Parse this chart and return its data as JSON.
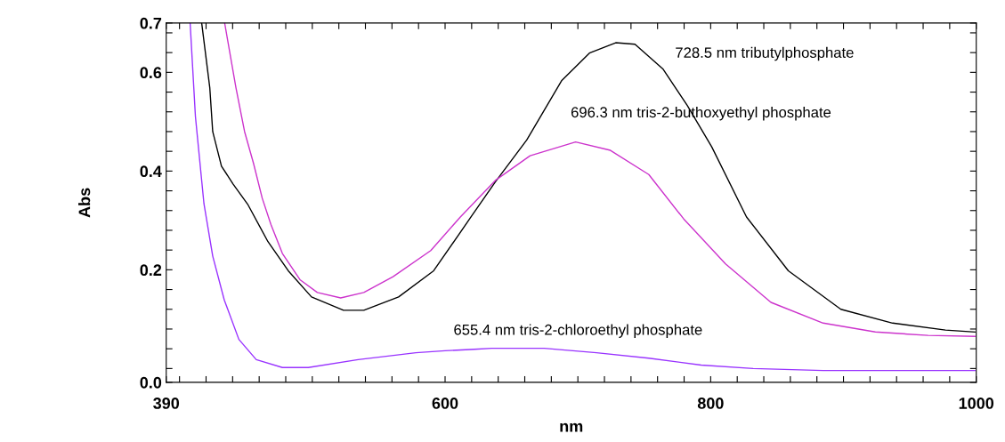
{
  "chart_data": {
    "type": "line",
    "xlabel": "nm",
    "ylabel": "Abs",
    "xlim": [
      390,
      1000
    ],
    "ylim": [
      -0.028,
      0.7
    ],
    "xticks": [
      390,
      {
        "value": 400,
        "label": null
      },
      {
        "value": 420,
        "label": null
      },
      {
        "value": 440,
        "label": null
      },
      {
        "value": 460,
        "label": null
      },
      {
        "value": 480,
        "label": null
      },
      {
        "value": 500,
        "label": null
      },
      {
        "value": 520,
        "label": null
      },
      {
        "value": 540,
        "label": null
      },
      {
        "value": 560,
        "label": null
      },
      {
        "value": 580,
        "label": null
      },
      600,
      {
        "value": 620,
        "label": null
      },
      {
        "value": 640,
        "label": null
      },
      {
        "value": 660,
        "label": null
      },
      {
        "value": 680,
        "label": null
      },
      {
        "value": 700,
        "label": null
      },
      {
        "value": 720,
        "label": null
      },
      {
        "value": 740,
        "label": null
      },
      {
        "value": 760,
        "label": null
      },
      {
        "value": 780,
        "label": null
      },
      800,
      {
        "value": 820,
        "label": null
      },
      {
        "value": 840,
        "label": null
      },
      {
        "value": 860,
        "label": null
      },
      {
        "value": 880,
        "label": null
      },
      {
        "value": 900,
        "label": null
      },
      {
        "value": 920,
        "label": null
      },
      {
        "value": 940,
        "label": null
      },
      {
        "value": 960,
        "label": null
      },
      {
        "value": 980,
        "label": null
      },
      1000
    ],
    "yticks": [
      {
        "value": -0.028,
        "label": "0.0"
      },
      {
        "value": 0,
        "label": null
      },
      {
        "value": 0.04,
        "label": null
      },
      {
        "value": 0.08,
        "label": null
      },
      {
        "value": 0.12,
        "label": null
      },
      {
        "value": 0.16,
        "label": null
      },
      0.2,
      {
        "value": 0.24,
        "label": null
      },
      {
        "value": 0.28,
        "label": null
      },
      {
        "value": 0.32,
        "label": null
      },
      {
        "value": 0.36,
        "label": null
      },
      0.4,
      {
        "value": 0.44,
        "label": null
      },
      {
        "value": 0.48,
        "label": null
      },
      {
        "value": 0.52,
        "label": null
      },
      {
        "value": 0.56,
        "label": null
      },
      0.6,
      {
        "value": 0.64,
        "label": null
      },
      {
        "value": 0.68,
        "label": null
      },
      0.7
    ],
    "grid": false,
    "marker": "none",
    "line_style": "solid",
    "series": [
      {
        "color": "#000000",
        "x": [
          416.7,
          422.8,
          425,
          431.6,
          440.3,
          451.3,
          466.6,
          481.9,
          499.4,
          523.5,
          538.8,
          565,
          591.4,
          619.5,
          637.8,
          661.5,
          687.7,
          708.7,
          728.5,
          743,
          764,
          782.4,
          800.8,
          827,
          858.5,
          898,
          937,
          976.8,
          999
        ],
        "values": [
          0.7,
          0.569,
          0.48,
          0.41,
          0.374,
          0.333,
          0.257,
          0.198,
          0.145,
          0.118,
          0.118,
          0.145,
          0.198,
          0.307,
          0.378,
          0.463,
          0.583,
          0.639,
          0.66,
          0.657,
          0.607,
          0.533,
          0.449,
          0.307,
          0.198,
          0.12,
          0.092,
          0.078,
          0.074
        ]
      },
      {
        "color": "#cc33cc",
        "x": [
          434,
          442.5,
          449,
          455.7,
          462.3,
          468.8,
          477.5,
          490.7,
          503.8,
          521.4,
          538.8,
          560.8,
          589.2,
          611.5,
          637.8,
          664,
          698.3,
          724.5,
          753.4,
          779.7,
          811.2,
          845.4,
          884.7,
          924,
          963.7,
          999
        ],
        "values": [
          0.7,
          0.569,
          0.48,
          0.416,
          0.345,
          0.292,
          0.233,
          0.18,
          0.154,
          0.143,
          0.154,
          0.186,
          0.239,
          0.307,
          0.381,
          0.431,
          0.459,
          0.442,
          0.393,
          0.303,
          0.212,
          0.134,
          0.092,
          0.074,
          0.067,
          0.065
        ]
      },
      {
        "color": "#9933ff",
        "x": [
          408,
          412,
          418.4,
          425,
          433.7,
          444.7,
          457.8,
          477.5,
          497,
          534.5,
          578,
          600,
          622,
          635.2,
          674.6,
          714,
          753.4,
          792.8,
          832,
          884.7,
          937,
          999
        ],
        "values": [
          0.7,
          0.51,
          0.334,
          0.228,
          0.139,
          0.059,
          0.018,
          0.002,
          0.002,
          0.018,
          0.032,
          0.036,
          0.039,
          0.041,
          0.041,
          0.032,
          0.021,
          0.007,
          0.0,
          -0.004,
          -0.004,
          -0.004
        ]
      }
    ],
    "annotations": [
      "728.5 nm tributylphosphate",
      "696.3 nm tris-2-buthoxyethyl phosphate",
      "655.4 nm tris-2-chloroethyl phosphate"
    ]
  }
}
